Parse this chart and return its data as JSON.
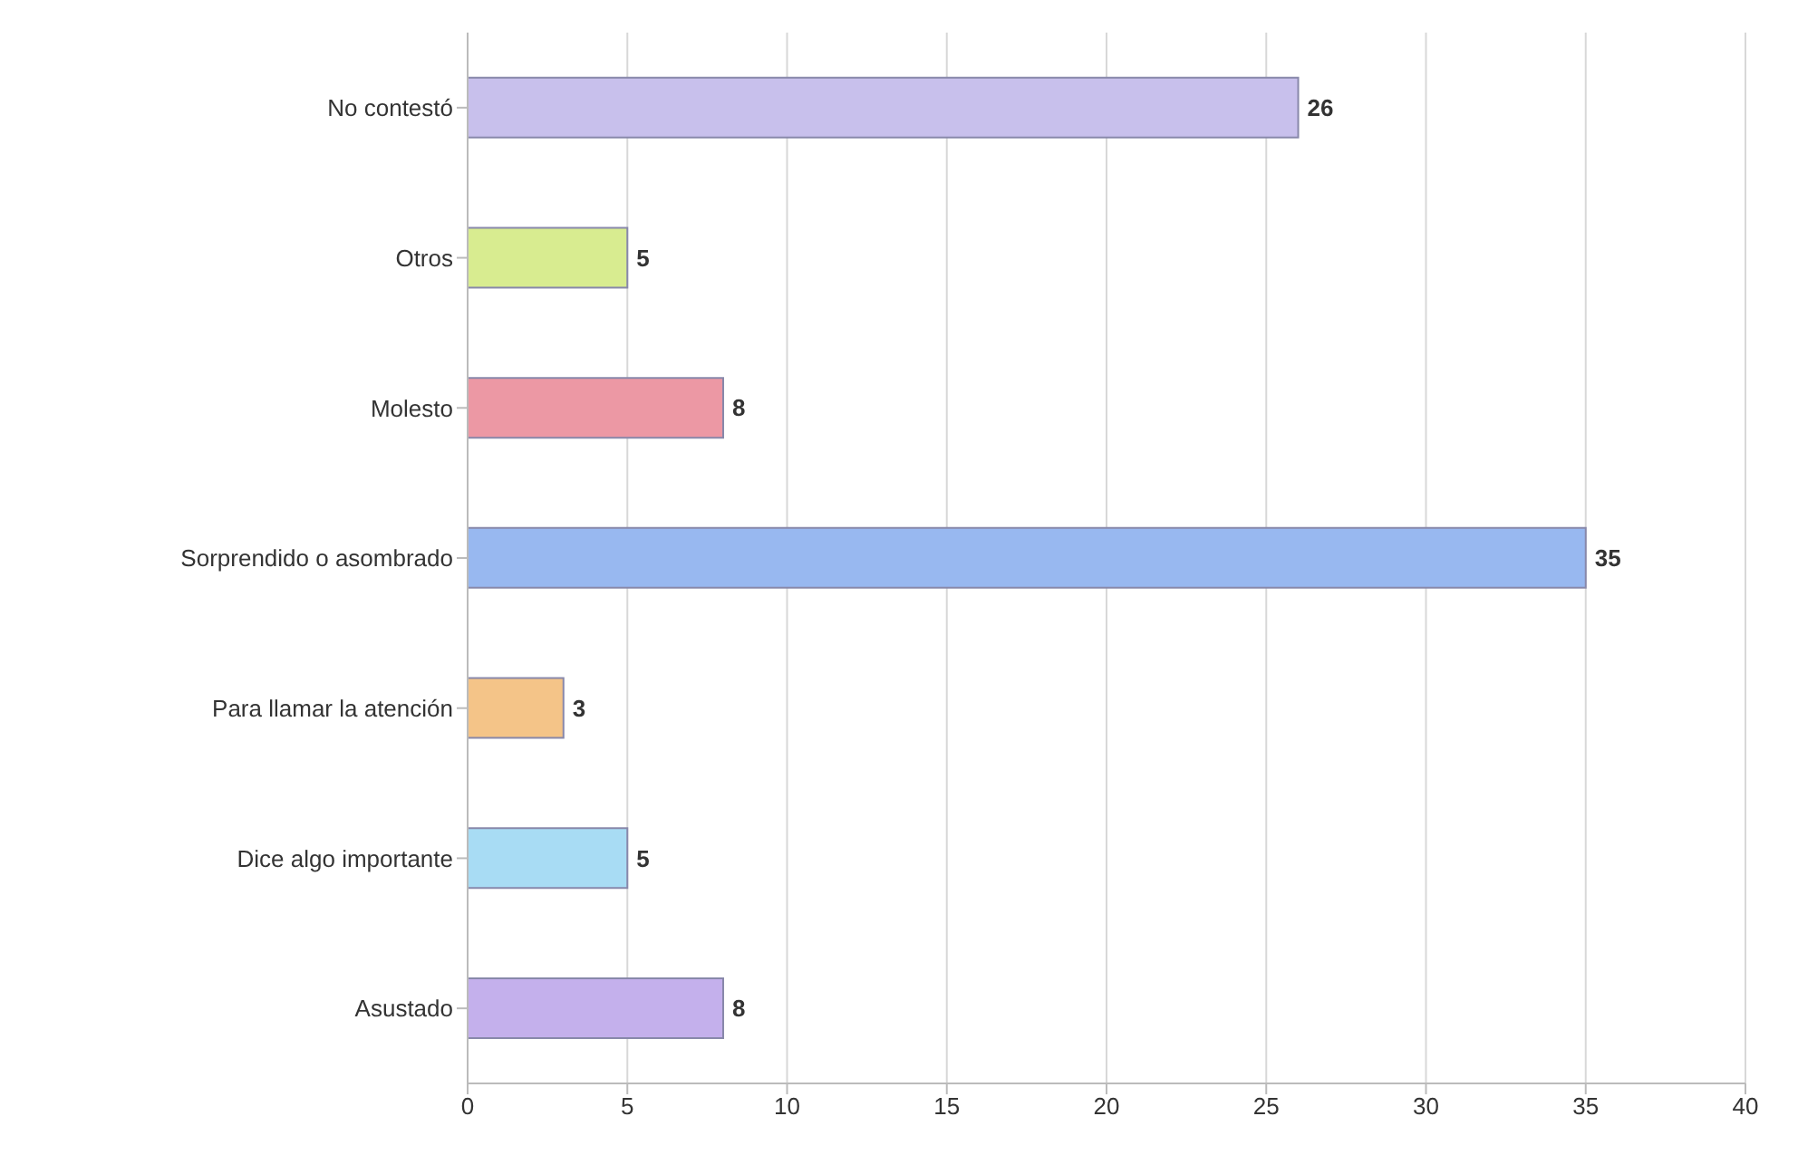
{
  "chart_data": {
    "type": "bar",
    "orientation": "horizontal",
    "categories": [
      "No contestó",
      "Otros",
      "Molesto",
      "Sorprendido o asombrado",
      "Para llamar la atención",
      "Dice algo importante",
      "Asustado"
    ],
    "values": [
      26,
      5,
      8,
      35,
      3,
      5,
      8
    ],
    "colors": [
      "#c8c0ec",
      "#d8ec90",
      "#ec98a4",
      "#98b8f0",
      "#f4c488",
      "#a8dcf4",
      "#c4b0ec"
    ],
    "xlim": [
      0,
      40
    ],
    "xticks": [
      0,
      5,
      10,
      15,
      20,
      25,
      30,
      35,
      40
    ],
    "grid": "x",
    "data_labels": true
  }
}
